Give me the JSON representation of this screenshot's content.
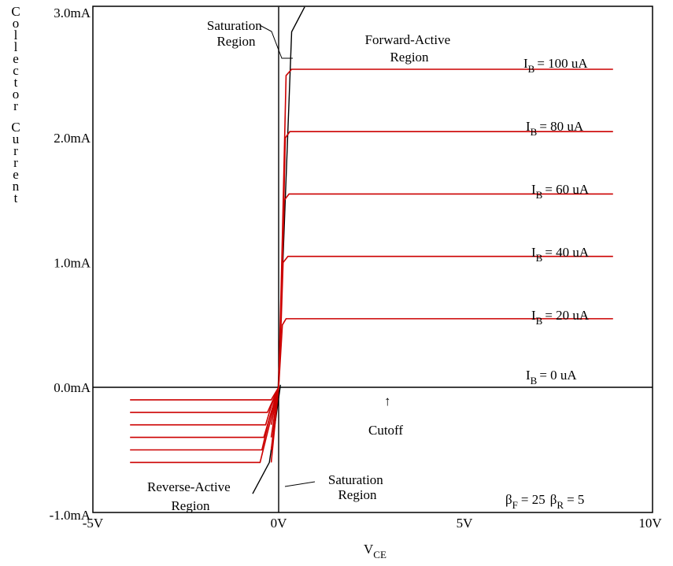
{
  "chart_data": {
    "type": "line",
    "title": "",
    "xlabel": "V",
    "xlabel_sub": "CE",
    "ylabel": "Collector Current",
    "xlim": [
      -5,
      10
    ],
    "ylim": [
      -1.0,
      3.0
    ],
    "x_unit": "V",
    "y_unit": "mA",
    "x_ticks": [
      {
        "value": -5,
        "label": "-5V"
      },
      {
        "value": 0,
        "label": "0V"
      },
      {
        "value": 5,
        "label": "5V"
      },
      {
        "value": 10,
        "label": "10V"
      }
    ],
    "y_ticks": [
      {
        "value": 3.0,
        "label": "3.0mA"
      },
      {
        "value": 2.0,
        "label": "2.0mA"
      },
      {
        "value": 1.0,
        "label": "1.0mA"
      },
      {
        "value": 0.0,
        "label": "0.0mA"
      },
      {
        "value": -1.0,
        "label": "-1.0mA"
      }
    ],
    "grid": false,
    "series_color": "#cc0000",
    "series": [
      {
        "label_main": "I",
        "label_sub": "B",
        "label_rest": "= 100 uA",
        "points": [
          [
            -0.2,
            -0.6
          ],
          [
            -0.1,
            -0.3
          ],
          [
            0,
            0
          ],
          [
            0.1,
            1.2
          ],
          [
            0.2,
            2.5
          ],
          [
            0.35,
            2.55
          ],
          [
            9.0,
            2.55
          ]
        ]
      },
      {
        "label_main": "I",
        "label_sub": "B",
        "label_rest": "= 80 uA",
        "points": [
          [
            -0.2,
            -0.5
          ],
          [
            -0.1,
            -0.25
          ],
          [
            0,
            0
          ],
          [
            0.1,
            1.0
          ],
          [
            0.18,
            2.0
          ],
          [
            0.3,
            2.05
          ],
          [
            9.0,
            2.05
          ]
        ]
      },
      {
        "label_main": "I",
        "label_sub": "B",
        "label_rest": "= 60 uA",
        "points": [
          [
            -0.2,
            -0.4
          ],
          [
            -0.1,
            -0.2
          ],
          [
            0,
            0
          ],
          [
            0.08,
            0.8
          ],
          [
            0.15,
            1.5
          ],
          [
            0.28,
            1.55
          ],
          [
            9.0,
            1.55
          ]
        ]
      },
      {
        "label_main": "I",
        "label_sub": "B",
        "label_rest": "= 40 uA",
        "points": [
          [
            -0.2,
            -0.3
          ],
          [
            -0.1,
            -0.15
          ],
          [
            0,
            0
          ],
          [
            0.07,
            0.55
          ],
          [
            0.12,
            1.0
          ],
          [
            0.25,
            1.05
          ],
          [
            9.0,
            1.05
          ]
        ]
      },
      {
        "label_main": "I",
        "label_sub": "B",
        "label_rest": "= 20 uA",
        "points": [
          [
            -0.2,
            -0.2
          ],
          [
            -0.1,
            -0.1
          ],
          [
            0,
            0
          ],
          [
            0.06,
            0.3
          ],
          [
            0.1,
            0.5
          ],
          [
            0.2,
            0.55
          ],
          [
            9.0,
            0.55
          ]
        ]
      },
      {
        "label_main": "I",
        "label_sub": "B",
        "label_rest": "= 0 uA",
        "points": []
      }
    ],
    "reverse_series": [
      {
        "points": [
          [
            -4.0,
            -0.1
          ],
          [
            -0.2,
            -0.1
          ],
          [
            -0.1,
            -0.05
          ],
          [
            0,
            0
          ]
        ]
      },
      {
        "points": [
          [
            -4.0,
            -0.2
          ],
          [
            -0.3,
            -0.2
          ],
          [
            -0.15,
            -0.1
          ],
          [
            0,
            0
          ]
        ]
      },
      {
        "points": [
          [
            -4.0,
            -0.3
          ],
          [
            -0.35,
            -0.3
          ],
          [
            -0.2,
            -0.15
          ],
          [
            0,
            0
          ]
        ]
      },
      {
        "points": [
          [
            -4.0,
            -0.4
          ],
          [
            -0.4,
            -0.4
          ],
          [
            -0.2,
            -0.2
          ],
          [
            0,
            0
          ]
        ]
      },
      {
        "points": [
          [
            -4.0,
            -0.5
          ],
          [
            -0.45,
            -0.5
          ],
          [
            -0.25,
            -0.25
          ],
          [
            0,
            0
          ]
        ]
      },
      {
        "points": [
          [
            -4.0,
            -0.6
          ],
          [
            -0.5,
            -0.6
          ],
          [
            -0.25,
            -0.3
          ],
          [
            0,
            0
          ]
        ]
      }
    ],
    "boundary_lines": [
      {
        "name": "forward-saturation-boundary",
        "points": [
          [
            -0.02,
            -0.05
          ],
          [
            0.35,
            2.85
          ],
          [
            0.7,
            3.05
          ]
        ]
      },
      {
        "name": "reverse-saturation-boundary",
        "points": [
          [
            0.05,
            0.02
          ],
          [
            -0.1,
            -0.3
          ],
          [
            -0.25,
            -0.6
          ],
          [
            -0.7,
            -0.85
          ]
        ]
      },
      {
        "name": "zero-volt-line",
        "points": [
          [
            0,
            3.05
          ],
          [
            0,
            -1.0
          ]
        ]
      }
    ],
    "annotations": {
      "saturation_top": {
        "lines": [
          "Saturation",
          "Region"
        ]
      },
      "forward_active": {
        "lines": [
          "Forward-Active",
          "Region"
        ]
      },
      "cutoff": {
        "text": "Cutoff",
        "arrow": "↑"
      },
      "saturation_bottom": {
        "lines": [
          "Saturation",
          "Region"
        ]
      },
      "reverse_active": {
        "lines": [
          "Reverse-Active",
          "Region"
        ]
      },
      "beta": {
        "beta_symbol": "β",
        "f_sub": "F",
        "f_value": "= 25",
        "r_sub": "R",
        "r_value": "= 5"
      }
    }
  }
}
